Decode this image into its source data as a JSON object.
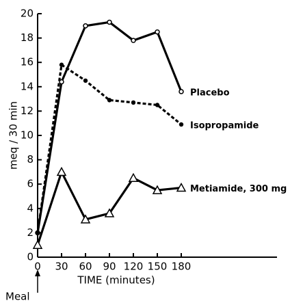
{
  "chart_data": {
    "type": "line",
    "x_label": "TIME (minutes)",
    "y_label": "meq / 30 min",
    "annotation": "Meal",
    "x": [
      0,
      30,
      60,
      90,
      120,
      150,
      180
    ],
    "series": [
      {
        "name": "Placebo",
        "color": "#000000",
        "marker": "open-circle",
        "dashed": false,
        "values": [
          2,
          14.4,
          19,
          19.3,
          17.8,
          18.5,
          13.6
        ]
      },
      {
        "name": "Isopropamide",
        "color": "#000000",
        "marker": "filled-circle",
        "dashed": true,
        "values": [
          2,
          15.8,
          14.5,
          12.9,
          12.7,
          12.5,
          10.9
        ]
      },
      {
        "name": "Metiamide, 300 mg",
        "color": "#000000",
        "marker": "open-triangle",
        "dashed": false,
        "values": [
          1,
          7,
          3.1,
          3.6,
          6.5,
          5.5,
          5.7
        ]
      }
    ],
    "xlim": [
      0,
      300
    ],
    "xticks": [
      0,
      30,
      60,
      90,
      120,
      150,
      180
    ],
    "ylim": [
      0,
      20
    ],
    "yticks": [
      0,
      2,
      4,
      6,
      8,
      10,
      12,
      14,
      16,
      18,
      20
    ],
    "grid": false
  }
}
